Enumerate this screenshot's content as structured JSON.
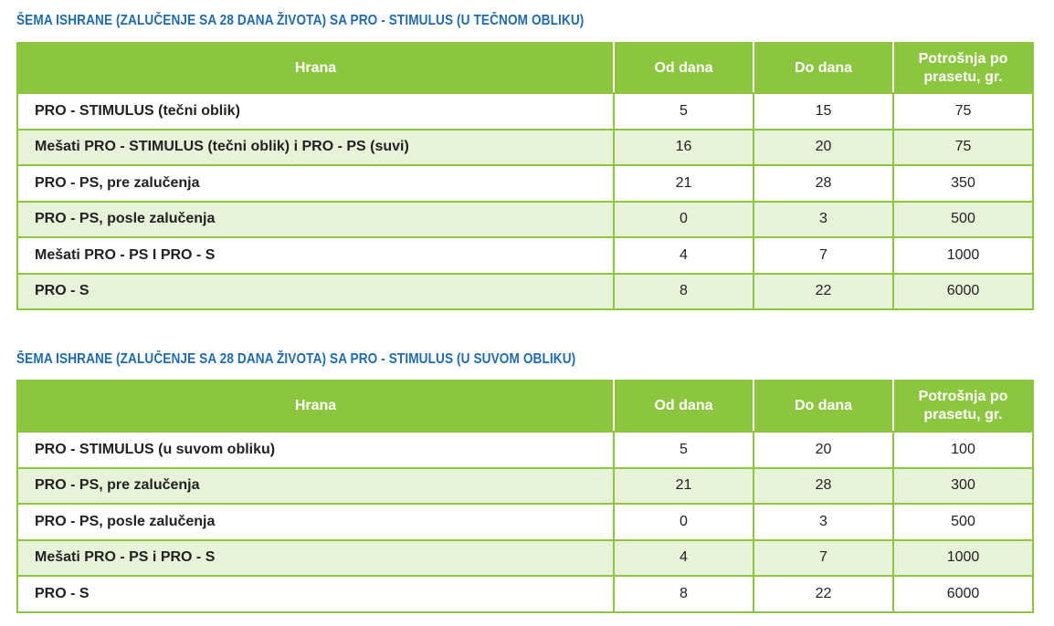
{
  "tables": [
    {
      "title": "ŠEMA ISHRANE (ZALUČENJE SA 28 DANA ŽIVOTA) SA PRO - STIMULUS (U TEČNOM OBLIKU)",
      "headers": [
        "Hrana",
        "Od dana",
        "Do dana",
        "Potrošnja po prasetu, gr."
      ],
      "rows": [
        [
          "PRO - STIMULUS (tečni oblik)",
          "5",
          "15",
          "75"
        ],
        [
          "Mešati PRO - STIMULUS (tečni oblik) i PRO - PS (suvi)",
          "16",
          "20",
          "75"
        ],
        [
          "PRO - PS, pre zalučenja",
          "21",
          "28",
          "350"
        ],
        [
          "PRO - PS, posle zalučenja",
          "0",
          "3",
          "500"
        ],
        [
          "Mešati PRO - PS I PRO - S",
          "4",
          "7",
          "1000"
        ],
        [
          "PRO - S",
          "8",
          "22",
          "6000"
        ]
      ]
    },
    {
      "title": "ŠEMA ISHRANE (ZALUČENJE SA 28 DANA ŽIVOTA) SA PRO - STIMULUS (U SUVOM OBLIKU)",
      "headers": [
        "Hrana",
        "Od dana",
        "Do dana",
        "Potrošnja po prasetu, gr."
      ],
      "rows": [
        [
          "PRO - STIMULUS (u suvom obliku)",
          "5",
          "20",
          "100"
        ],
        [
          "PRO - PS, pre zalučenja",
          "21",
          "28",
          "300"
        ],
        [
          "PRO - PS, posle zalučenja",
          "0",
          "3",
          "500"
        ],
        [
          "Mešati PRO - PS i PRO - S",
          "4",
          "7",
          "1000"
        ],
        [
          "PRO - S",
          "8",
          "22",
          "6000"
        ]
      ]
    }
  ],
  "colors": {
    "title": "#1f6bb0",
    "header_bg": "#8cc63f",
    "alt_row_bg": "#e8f2d9",
    "border": "#8cc63f"
  }
}
